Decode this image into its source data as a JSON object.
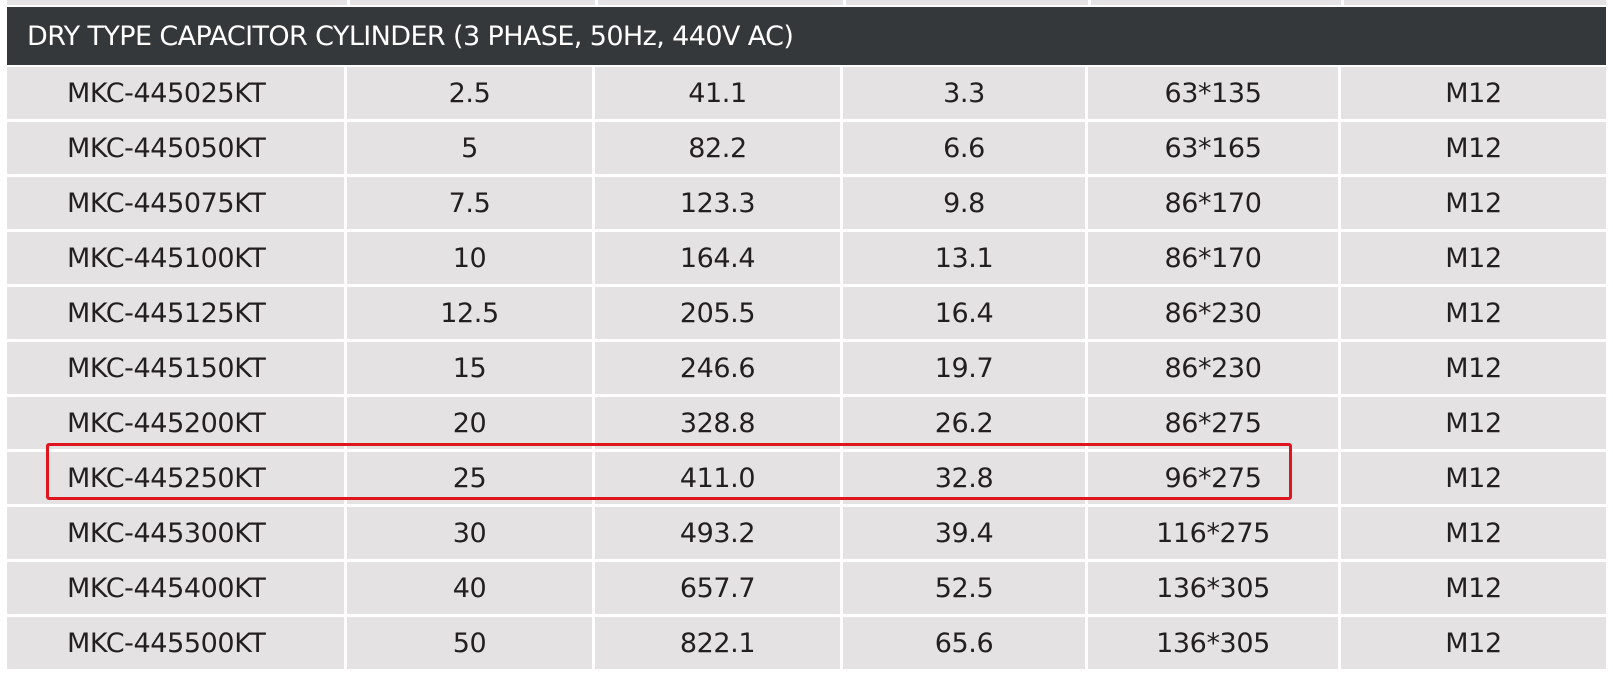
{
  "header": {
    "title": "DRY TYPE CAPACITOR CYLINDER (3 PHASE, 50Hz, 440V AC)"
  },
  "colors": {
    "header_bg": "#35383a",
    "cell_bg": "#e4e2e3",
    "highlight": "#e0161e"
  },
  "table": {
    "rows": [
      [
        "MKC-445025KT",
        "2.5",
        "41.1",
        "3.3",
        "63*135",
        "M12"
      ],
      [
        "MKC-445050KT",
        "5",
        "82.2",
        "6.6",
        "63*165",
        "M12"
      ],
      [
        "MKC-445075KT",
        "7.5",
        "123.3",
        "9.8",
        "86*170",
        "M12"
      ],
      [
        "MKC-445100KT",
        "10",
        "164.4",
        "13.1",
        "86*170",
        "M12"
      ],
      [
        "MKC-445125KT",
        "12.5",
        "205.5",
        "16.4",
        "86*230",
        "M12"
      ],
      [
        "MKC-445150KT",
        "15",
        "246.6",
        "19.7",
        "86*230",
        "M12"
      ],
      [
        "MKC-445200KT",
        "20",
        "328.8",
        "26.2",
        "86*275",
        "M12"
      ],
      [
        "MKC-445250KT",
        "25",
        "411.0",
        "32.8",
        "96*275",
        "M12"
      ],
      [
        "MKC-445300KT",
        "30",
        "493.2",
        "39.4",
        "116*275",
        "M12"
      ],
      [
        "MKC-445400KT",
        "40",
        "657.7",
        "52.5",
        "136*305",
        "M12"
      ],
      [
        "MKC-445500KT",
        "50",
        "822.1",
        "65.6",
        "136*305",
        "M12"
      ]
    ],
    "highlighted_row": "MKC-445250KT"
  }
}
